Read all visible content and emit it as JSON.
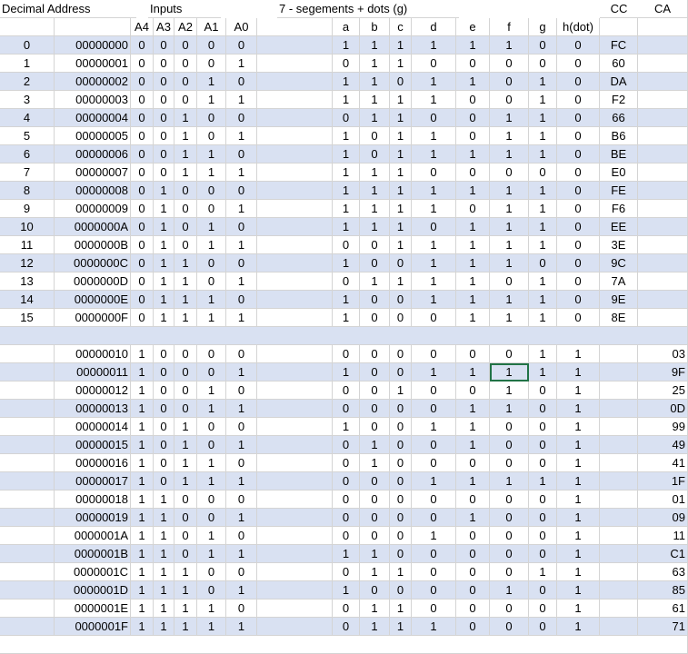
{
  "sheet": {
    "headers": {
      "decimal_address": "Decimal Address",
      "inputs": "Inputs",
      "segments": "7 - segements + dots (g)",
      "cc": "CC",
      "ca": "CA"
    },
    "subheaders": [
      "A4",
      "A3",
      "A2",
      "A1",
      "A0",
      "a",
      "b",
      "c",
      "d",
      "e",
      "f",
      "g",
      "h(dot)"
    ],
    "selected_cell": {
      "row": 18,
      "col": "f"
    },
    "colors": {
      "band": "#d9e1f2",
      "grid": "#d4d4d4",
      "indicator": "#1e7145",
      "selection": "#217346"
    },
    "rows": [
      {
        "dec": "0",
        "addr": "00000000",
        "bits": [
          "0",
          "0",
          "0",
          "0",
          "0"
        ],
        "seg": [
          "1",
          "1",
          "1",
          "1",
          "1",
          "1",
          "0",
          "0"
        ],
        "cc": "FC",
        "ca": ""
      },
      {
        "dec": "1",
        "addr": "00000001",
        "bits": [
          "0",
          "0",
          "0",
          "0",
          "1"
        ],
        "seg": [
          "0",
          "1",
          "1",
          "0",
          "0",
          "0",
          "0",
          "0"
        ],
        "cc": "60",
        "ca": ""
      },
      {
        "dec": "2",
        "addr": "00000002",
        "bits": [
          "0",
          "0",
          "0",
          "1",
          "0"
        ],
        "seg": [
          "1",
          "1",
          "0",
          "1",
          "1",
          "0",
          "1",
          "0"
        ],
        "cc": "DA",
        "ca": ""
      },
      {
        "dec": "3",
        "addr": "00000003",
        "bits": [
          "0",
          "0",
          "0",
          "1",
          "1"
        ],
        "seg": [
          "1",
          "1",
          "1",
          "1",
          "0",
          "0",
          "1",
          "0"
        ],
        "cc": "F2",
        "ca": ""
      },
      {
        "dec": "4",
        "addr": "00000004",
        "bits": [
          "0",
          "0",
          "1",
          "0",
          "0"
        ],
        "seg": [
          "0",
          "1",
          "1",
          "0",
          "0",
          "1",
          "1",
          "0"
        ],
        "cc": "66",
        "ca": ""
      },
      {
        "dec": "5",
        "addr": "00000005",
        "bits": [
          "0",
          "0",
          "1",
          "0",
          "1"
        ],
        "seg": [
          "1",
          "0",
          "1",
          "1",
          "0",
          "1",
          "1",
          "0"
        ],
        "cc": "B6",
        "ca": ""
      },
      {
        "dec": "6",
        "addr": "00000006",
        "bits": [
          "0",
          "0",
          "1",
          "1",
          "0"
        ],
        "seg": [
          "1",
          "0",
          "1",
          "1",
          "1",
          "1",
          "1",
          "0"
        ],
        "cc": "BE",
        "ca": ""
      },
      {
        "dec": "7",
        "addr": "00000007",
        "bits": [
          "0",
          "0",
          "1",
          "1",
          "1"
        ],
        "seg": [
          "1",
          "1",
          "1",
          "0",
          "0",
          "0",
          "0",
          "0"
        ],
        "cc": "E0",
        "ca": ""
      },
      {
        "dec": "8",
        "addr": "00000008",
        "bits": [
          "0",
          "1",
          "0",
          "0",
          "0"
        ],
        "seg": [
          "1",
          "1",
          "1",
          "1",
          "1",
          "1",
          "1",
          "0"
        ],
        "cc": "FE",
        "ca": ""
      },
      {
        "dec": "9",
        "addr": "00000009",
        "bits": [
          "0",
          "1",
          "0",
          "0",
          "1"
        ],
        "seg": [
          "1",
          "1",
          "1",
          "1",
          "0",
          "1",
          "1",
          "0"
        ],
        "cc": "F6",
        "ca": ""
      },
      {
        "dec": "10",
        "addr": "0000000A",
        "bits": [
          "0",
          "1",
          "0",
          "1",
          "0"
        ],
        "seg": [
          "1",
          "1",
          "1",
          "0",
          "1",
          "1",
          "1",
          "0"
        ],
        "cc": "EE",
        "ca": ""
      },
      {
        "dec": "11",
        "addr": "0000000B",
        "bits": [
          "0",
          "1",
          "0",
          "1",
          "1"
        ],
        "seg": [
          "0",
          "0",
          "1",
          "1",
          "1",
          "1",
          "1",
          "0"
        ],
        "cc": "3E",
        "ca": ""
      },
      {
        "dec": "12",
        "addr": "0000000C",
        "bits": [
          "0",
          "1",
          "1",
          "0",
          "0"
        ],
        "seg": [
          "1",
          "0",
          "0",
          "1",
          "1",
          "1",
          "0",
          "0"
        ],
        "cc": "9C",
        "ca": ""
      },
      {
        "dec": "13",
        "addr": "0000000D",
        "bits": [
          "0",
          "1",
          "1",
          "0",
          "1"
        ],
        "seg": [
          "0",
          "1",
          "1",
          "1",
          "1",
          "0",
          "1",
          "0"
        ],
        "cc": "7A",
        "ca": ""
      },
      {
        "dec": "14",
        "addr": "0000000E",
        "bits": [
          "0",
          "1",
          "1",
          "1",
          "0"
        ],
        "seg": [
          "1",
          "0",
          "0",
          "1",
          "1",
          "1",
          "1",
          "0"
        ],
        "cc": "9E",
        "ca": ""
      },
      {
        "dec": "15",
        "addr": "0000000F",
        "bits": [
          "0",
          "1",
          "1",
          "1",
          "1"
        ],
        "seg": [
          "1",
          "0",
          "0",
          "0",
          "1",
          "1",
          "1",
          "0"
        ],
        "cc": "8E",
        "ca": ""
      },
      {
        "blank": true
      },
      {
        "dec": "",
        "addr": "00000010",
        "bits": [
          "1",
          "0",
          "0",
          "0",
          "0"
        ],
        "seg": [
          "0",
          "0",
          "0",
          "0",
          "0",
          "0",
          "1",
          "1"
        ],
        "cc": "",
        "ca": "03"
      },
      {
        "dec": "",
        "addr": "00000011",
        "bits": [
          "1",
          "0",
          "0",
          "0",
          "1"
        ],
        "seg": [
          "1",
          "0",
          "0",
          "1",
          "1",
          "1",
          "1",
          "1"
        ],
        "cc": "",
        "ca": "9F"
      },
      {
        "dec": "",
        "addr": "00000012",
        "bits": [
          "1",
          "0",
          "0",
          "1",
          "0"
        ],
        "seg": [
          "0",
          "0",
          "1",
          "0",
          "0",
          "1",
          "0",
          "1"
        ],
        "cc": "",
        "ca": "25"
      },
      {
        "dec": "",
        "addr": "00000013",
        "bits": [
          "1",
          "0",
          "0",
          "1",
          "1"
        ],
        "seg": [
          "0",
          "0",
          "0",
          "0",
          "1",
          "1",
          "0",
          "1"
        ],
        "cc": "",
        "ca": "0D"
      },
      {
        "dec": "",
        "addr": "00000014",
        "bits": [
          "1",
          "0",
          "1",
          "0",
          "0"
        ],
        "seg": [
          "1",
          "0",
          "0",
          "1",
          "1",
          "0",
          "0",
          "1"
        ],
        "cc": "",
        "ca": "99"
      },
      {
        "dec": "",
        "addr": "00000015",
        "bits": [
          "1",
          "0",
          "1",
          "0",
          "1"
        ],
        "seg": [
          "0",
          "1",
          "0",
          "0",
          "1",
          "0",
          "0",
          "1"
        ],
        "cc": "",
        "ca": "49"
      },
      {
        "dec": "",
        "addr": "00000016",
        "bits": [
          "1",
          "0",
          "1",
          "1",
          "0"
        ],
        "seg": [
          "0",
          "1",
          "0",
          "0",
          "0",
          "0",
          "0",
          "1"
        ],
        "cc": "",
        "ca": "41"
      },
      {
        "dec": "",
        "addr": "00000017",
        "bits": [
          "1",
          "0",
          "1",
          "1",
          "1"
        ],
        "seg": [
          "0",
          "0",
          "0",
          "1",
          "1",
          "1",
          "1",
          "1"
        ],
        "cc": "",
        "ca": "1F"
      },
      {
        "dec": "",
        "addr": "00000018",
        "bits": [
          "1",
          "1",
          "0",
          "0",
          "0"
        ],
        "seg": [
          "0",
          "0",
          "0",
          "0",
          "0",
          "0",
          "0",
          "1"
        ],
        "cc": "",
        "ca": "01"
      },
      {
        "dec": "",
        "addr": "00000019",
        "bits": [
          "1",
          "1",
          "0",
          "0",
          "1"
        ],
        "seg": [
          "0",
          "0",
          "0",
          "0",
          "1",
          "0",
          "0",
          "1"
        ],
        "cc": "",
        "ca": "09"
      },
      {
        "dec": "",
        "addr": "0000001A",
        "bits": [
          "1",
          "1",
          "0",
          "1",
          "0"
        ],
        "seg": [
          "0",
          "0",
          "0",
          "1",
          "0",
          "0",
          "0",
          "1"
        ],
        "cc": "",
        "ca": "11"
      },
      {
        "dec": "",
        "addr": "0000001B",
        "bits": [
          "1",
          "1",
          "0",
          "1",
          "1"
        ],
        "seg": [
          "1",
          "1",
          "0",
          "0",
          "0",
          "0",
          "0",
          "1"
        ],
        "cc": "",
        "ca": "C1"
      },
      {
        "dec": "",
        "addr": "0000001C",
        "bits": [
          "1",
          "1",
          "1",
          "0",
          "0"
        ],
        "seg": [
          "0",
          "1",
          "1",
          "0",
          "0",
          "0",
          "1",
          "1"
        ],
        "cc": "",
        "ca": "63"
      },
      {
        "dec": "",
        "addr": "0000001D",
        "bits": [
          "1",
          "1",
          "1",
          "0",
          "1"
        ],
        "seg": [
          "1",
          "0",
          "0",
          "0",
          "0",
          "1",
          "0",
          "1"
        ],
        "cc": "",
        "ca": "85"
      },
      {
        "dec": "",
        "addr": "0000001E",
        "bits": [
          "1",
          "1",
          "1",
          "1",
          "0"
        ],
        "seg": [
          "0",
          "1",
          "1",
          "0",
          "0",
          "0",
          "0",
          "1"
        ],
        "cc": "",
        "ca": "61"
      },
      {
        "dec": "",
        "addr": "0000001F",
        "bits": [
          "1",
          "1",
          "1",
          "1",
          "1"
        ],
        "seg": [
          "0",
          "1",
          "1",
          "1",
          "0",
          "0",
          "0",
          "1"
        ],
        "cc": "",
        "ca": "71"
      }
    ]
  }
}
